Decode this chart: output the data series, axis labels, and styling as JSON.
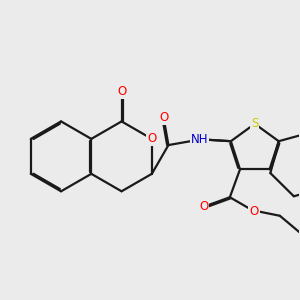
{
  "background_color": "#ebebeb",
  "bond_color": "#1a1a1a",
  "atom_colors": {
    "O": "#ff0000",
    "N": "#0000cc",
    "S": "#cccc00",
    "C": "#1a1a1a"
  },
  "figsize": [
    3.0,
    3.0
  ],
  "dpi": 100,
  "lw": 1.6,
  "fontsize": 8.5
}
